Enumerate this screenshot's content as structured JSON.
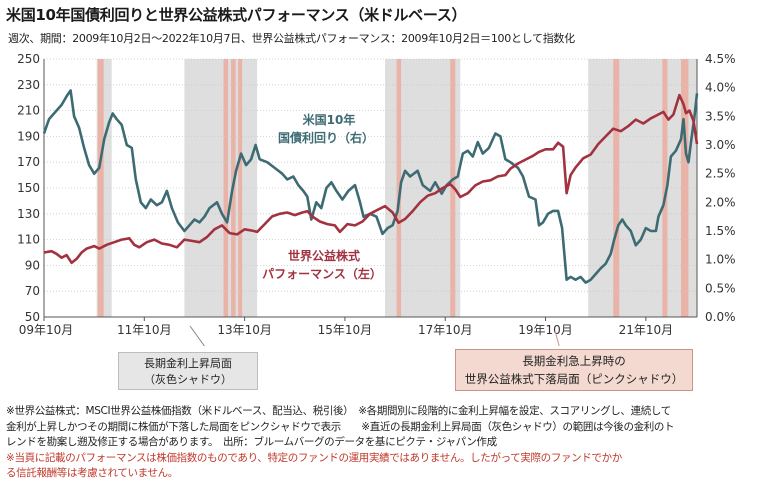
{
  "header": {
    "title": "米国10年国債利回りと世界公益株式パフォーマンス（米ドルベース）",
    "subtitle": "週次、期間：2009年10月2日～2022年10月7日、世界公益株式パフォーマンス：2009年10月2日＝100として指数化"
  },
  "callouts": {
    "gray_line1": "長期金利上昇局面",
    "gray_line2": "（灰色シャドウ）",
    "pink_line1": "長期金利急上昇時の",
    "pink_line2": "世界公益株式下落局面（ピンクシャドウ）"
  },
  "footnotes": [
    "※世界公益株式：MSCI世界公益株価指数（米ドルベース、配当込、税引後）　※各期間別に段階的に金利上昇幅を設定、スコアリングし、連続して",
    "金利が上昇しかつその期間に株価が下落した局面をピンクシャドウで表示　　※直近の長期金利上昇局面（灰色シャドウ）の範囲は今後の金利のト",
    "レンドを勘案し遡及修正する場合があります。　出所：ブルームバーグのデータを基にピクテ・ジャパン作成"
  ],
  "warning": [
    "※当頁に記載のパフォーマンスは株価指数のものであり、特定のファンドの運用実績ではありません。したがって実際のファンドでかか",
    "る信託報酬等は考慮されていません。"
  ],
  "colors": {
    "yield_line": "#3d6b73",
    "equity_line": "#a33240",
    "gray_shade": "#dedede",
    "pink_shade": "#e9b3a8",
    "warning_text": "#c0392b"
  },
  "chart_data": {
    "type": "line",
    "x_range": [
      "2009-10-02",
      "2022-10-07"
    ],
    "x_tick_labels": [
      "09年10月",
      "11年10月",
      "13年10月",
      "15年10月",
      "17年10月",
      "19年10月",
      "21年10月"
    ],
    "x_ticks": [
      2009.75,
      2011.75,
      2013.75,
      2015.75,
      2017.75,
      2019.75,
      2021.75
    ],
    "y_left": {
      "range": [
        50,
        250
      ],
      "ticks": [
        50,
        70,
        90,
        110,
        130,
        150,
        170,
        190,
        210,
        230,
        250
      ]
    },
    "y_right": {
      "range": [
        0,
        4.5
      ],
      "ticks": [
        "0.0%",
        "0.5%",
        "1.0%",
        "1.5%",
        "2.0%",
        "2.5%",
        "3.0%",
        "3.5%",
        "4.0%",
        "4.5%"
      ]
    },
    "gray_shades": [
      [
        2010.8,
        2011.1
      ],
      [
        2012.55,
        2014.0
      ],
      [
        2016.55,
        2018.05
      ],
      [
        2020.6,
        2022.77
      ]
    ],
    "pink_shades": [
      [
        2010.82,
        2010.94
      ],
      [
        2013.33,
        2013.42
      ],
      [
        2013.48,
        2013.57
      ],
      [
        2013.62,
        2013.7
      ],
      [
        2016.78,
        2016.87
      ],
      [
        2017.85,
        2017.95
      ],
      [
        2021.1,
        2021.22
      ],
      [
        2022.08,
        2022.18
      ],
      [
        2022.45,
        2022.6
      ]
    ],
    "series": [
      {
        "name": "米国10年国債利回り（右）",
        "label_line1": "米国10年",
        "label_line2": "国債利回り（右）",
        "axis": "right",
        "points": [
          [
            2009.75,
            3.2
          ],
          [
            2009.85,
            3.45
          ],
          [
            2010.0,
            3.6
          ],
          [
            2010.1,
            3.7
          ],
          [
            2010.2,
            3.85
          ],
          [
            2010.28,
            3.95
          ],
          [
            2010.35,
            3.5
          ],
          [
            2010.45,
            3.3
          ],
          [
            2010.55,
            2.95
          ],
          [
            2010.65,
            2.65
          ],
          [
            2010.75,
            2.5
          ],
          [
            2010.85,
            2.6
          ],
          [
            2010.95,
            3.1
          ],
          [
            2011.05,
            3.4
          ],
          [
            2011.12,
            3.55
          ],
          [
            2011.2,
            3.45
          ],
          [
            2011.3,
            3.35
          ],
          [
            2011.4,
            3.0
          ],
          [
            2011.5,
            2.95
          ],
          [
            2011.58,
            2.4
          ],
          [
            2011.68,
            2.0
          ],
          [
            2011.78,
            1.9
          ],
          [
            2011.88,
            2.05
          ],
          [
            2012.0,
            1.95
          ],
          [
            2012.1,
            2.0
          ],
          [
            2012.2,
            2.2
          ],
          [
            2012.3,
            1.9
          ],
          [
            2012.42,
            1.65
          ],
          [
            2012.55,
            1.5
          ],
          [
            2012.65,
            1.6
          ],
          [
            2012.75,
            1.7
          ],
          [
            2012.85,
            1.65
          ],
          [
            2012.95,
            1.75
          ],
          [
            2013.05,
            1.9
          ],
          [
            2013.2,
            2.0
          ],
          [
            2013.3,
            1.8
          ],
          [
            2013.4,
            1.65
          ],
          [
            2013.5,
            2.2
          ],
          [
            2013.58,
            2.55
          ],
          [
            2013.68,
            2.85
          ],
          [
            2013.78,
            2.65
          ],
          [
            2013.88,
            2.75
          ],
          [
            2013.97,
            3.0
          ],
          [
            2014.05,
            2.75
          ],
          [
            2014.2,
            2.7
          ],
          [
            2014.35,
            2.6
          ],
          [
            2014.5,
            2.5
          ],
          [
            2014.6,
            2.4
          ],
          [
            2014.72,
            2.45
          ],
          [
            2014.82,
            2.3
          ],
          [
            2014.92,
            2.2
          ],
          [
            2015.0,
            2.1
          ],
          [
            2015.08,
            1.7
          ],
          [
            2015.18,
            2.0
          ],
          [
            2015.28,
            1.9
          ],
          [
            2015.38,
            2.25
          ],
          [
            2015.48,
            2.35
          ],
          [
            2015.58,
            2.2
          ],
          [
            2015.7,
            2.05
          ],
          [
            2015.82,
            2.2
          ],
          [
            2015.95,
            2.3
          ],
          [
            2016.05,
            2.0
          ],
          [
            2016.12,
            1.75
          ],
          [
            2016.25,
            1.8
          ],
          [
            2016.38,
            1.75
          ],
          [
            2016.5,
            1.45
          ],
          [
            2016.6,
            1.55
          ],
          [
            2016.7,
            1.6
          ],
          [
            2016.8,
            1.85
          ],
          [
            2016.87,
            2.35
          ],
          [
            2016.95,
            2.55
          ],
          [
            2017.05,
            2.45
          ],
          [
            2017.2,
            2.55
          ],
          [
            2017.3,
            2.3
          ],
          [
            2017.45,
            2.2
          ],
          [
            2017.55,
            2.35
          ],
          [
            2017.68,
            2.15
          ],
          [
            2017.78,
            2.3
          ],
          [
            2017.9,
            2.4
          ],
          [
            2018.0,
            2.45
          ],
          [
            2018.1,
            2.85
          ],
          [
            2018.2,
            2.9
          ],
          [
            2018.3,
            2.8
          ],
          [
            2018.4,
            3.05
          ],
          [
            2018.5,
            2.85
          ],
          [
            2018.62,
            2.95
          ],
          [
            2018.75,
            3.2
          ],
          [
            2018.85,
            3.15
          ],
          [
            2018.95,
            2.75
          ],
          [
            2019.05,
            2.7
          ],
          [
            2019.2,
            2.6
          ],
          [
            2019.3,
            2.45
          ],
          [
            2019.42,
            2.1
          ],
          [
            2019.55,
            2.05
          ],
          [
            2019.62,
            1.6
          ],
          [
            2019.7,
            1.65
          ],
          [
            2019.8,
            1.8
          ],
          [
            2019.9,
            1.85
          ],
          [
            2020.0,
            1.85
          ],
          [
            2020.08,
            1.55
          ],
          [
            2020.17,
            0.65
          ],
          [
            2020.25,
            0.7
          ],
          [
            2020.35,
            0.65
          ],
          [
            2020.45,
            0.7
          ],
          [
            2020.55,
            0.6
          ],
          [
            2020.65,
            0.65
          ],
          [
            2020.75,
            0.75
          ],
          [
            2020.85,
            0.85
          ],
          [
            2020.95,
            0.93
          ],
          [
            2021.05,
            1.1
          ],
          [
            2021.12,
            1.35
          ],
          [
            2021.2,
            1.6
          ],
          [
            2021.28,
            1.7
          ],
          [
            2021.35,
            1.6
          ],
          [
            2021.45,
            1.5
          ],
          [
            2021.55,
            1.25
          ],
          [
            2021.65,
            1.35
          ],
          [
            2021.75,
            1.55
          ],
          [
            2021.85,
            1.5
          ],
          [
            2021.95,
            1.5
          ],
          [
            2022.0,
            1.75
          ],
          [
            2022.1,
            1.95
          ],
          [
            2022.18,
            2.3
          ],
          [
            2022.25,
            2.8
          ],
          [
            2022.35,
            2.9
          ],
          [
            2022.45,
            3.1
          ],
          [
            2022.5,
            3.45
          ],
          [
            2022.55,
            2.85
          ],
          [
            2022.6,
            2.7
          ],
          [
            2022.65,
            3.05
          ],
          [
            2022.72,
            3.5
          ],
          [
            2022.77,
            3.9
          ]
        ]
      },
      {
        "name": "世界公益株式パフォーマンス（左）",
        "label_line1": "世界公益株式",
        "label_line2": "パフォーマンス（左）",
        "axis": "left",
        "points": [
          [
            2009.75,
            100
          ],
          [
            2009.9,
            101
          ],
          [
            2010.0,
            99
          ],
          [
            2010.1,
            96
          ],
          [
            2010.2,
            98
          ],
          [
            2010.3,
            92
          ],
          [
            2010.4,
            95
          ],
          [
            2010.5,
            100
          ],
          [
            2010.6,
            103
          ],
          [
            2010.75,
            105
          ],
          [
            2010.85,
            103
          ],
          [
            2011.0,
            106
          ],
          [
            2011.15,
            108
          ],
          [
            2011.3,
            110
          ],
          [
            2011.45,
            111
          ],
          [
            2011.55,
            106
          ],
          [
            2011.65,
            104
          ],
          [
            2011.8,
            108
          ],
          [
            2011.95,
            110
          ],
          [
            2012.1,
            107
          ],
          [
            2012.25,
            106
          ],
          [
            2012.4,
            104
          ],
          [
            2012.55,
            110
          ],
          [
            2012.7,
            109
          ],
          [
            2012.85,
            108
          ],
          [
            2013.0,
            112
          ],
          [
            2013.15,
            118
          ],
          [
            2013.3,
            121
          ],
          [
            2013.45,
            115
          ],
          [
            2013.6,
            114
          ],
          [
            2013.75,
            118
          ],
          [
            2013.9,
            117
          ],
          [
            2014.0,
            116
          ],
          [
            2014.15,
            122
          ],
          [
            2014.3,
            128
          ],
          [
            2014.45,
            130
          ],
          [
            2014.6,
            131
          ],
          [
            2014.75,
            129
          ],
          [
            2014.9,
            131
          ],
          [
            2015.0,
            132
          ],
          [
            2015.1,
            128
          ],
          [
            2015.25,
            124
          ],
          [
            2015.4,
            122
          ],
          [
            2015.55,
            121
          ],
          [
            2015.65,
            116
          ],
          [
            2015.8,
            122
          ],
          [
            2015.95,
            121
          ],
          [
            2016.1,
            124
          ],
          [
            2016.25,
            130
          ],
          [
            2016.4,
            133
          ],
          [
            2016.55,
            136
          ],
          [
            2016.7,
            131
          ],
          [
            2016.82,
            123
          ],
          [
            2016.95,
            126
          ],
          [
            2017.1,
            132
          ],
          [
            2017.25,
            139
          ],
          [
            2017.4,
            144
          ],
          [
            2017.55,
            146
          ],
          [
            2017.7,
            150
          ],
          [
            2017.85,
            153
          ],
          [
            2017.95,
            149
          ],
          [
            2018.05,
            143
          ],
          [
            2018.2,
            146
          ],
          [
            2018.35,
            152
          ],
          [
            2018.5,
            155
          ],
          [
            2018.65,
            156
          ],
          [
            2018.8,
            159
          ],
          [
            2018.95,
            160
          ],
          [
            2019.05,
            165
          ],
          [
            2019.2,
            169
          ],
          [
            2019.35,
            172
          ],
          [
            2019.5,
            175
          ],
          [
            2019.62,
            178
          ],
          [
            2019.75,
            180
          ],
          [
            2019.9,
            180
          ],
          [
            2020.0,
            185
          ],
          [
            2020.1,
            182
          ],
          [
            2020.17,
            146
          ],
          [
            2020.25,
            160
          ],
          [
            2020.35,
            166
          ],
          [
            2020.5,
            173
          ],
          [
            2020.65,
            176
          ],
          [
            2020.8,
            184
          ],
          [
            2020.95,
            190
          ],
          [
            2021.1,
            196
          ],
          [
            2021.25,
            194
          ],
          [
            2021.4,
            198
          ],
          [
            2021.55,
            203
          ],
          [
            2021.7,
            200
          ],
          [
            2021.85,
            204
          ],
          [
            2022.0,
            207
          ],
          [
            2022.1,
            209
          ],
          [
            2022.2,
            203
          ],
          [
            2022.3,
            207
          ],
          [
            2022.42,
            222
          ],
          [
            2022.5,
            215
          ],
          [
            2022.55,
            208
          ],
          [
            2022.62,
            210
          ],
          [
            2022.7,
            202
          ],
          [
            2022.77,
            184
          ]
        ]
      }
    ]
  }
}
